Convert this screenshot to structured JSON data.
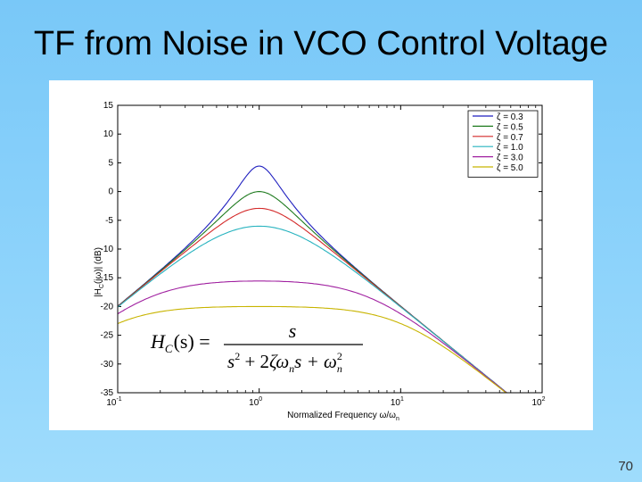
{
  "slide": {
    "title": "TF from Noise in VCO Control Voltage",
    "page_number": "70"
  },
  "formula": {
    "lhs": "H",
    "lhs_sub": "C",
    "lhs_arg": "(s) =",
    "numerator": "s",
    "den_s": "s",
    "den_s_sup": "2",
    "den_plus1": " + 2",
    "den_zeta": "ζω",
    "den_zeta_sub": "n",
    "den_s2": "s + ω",
    "den_w_sup": "2",
    "den_w_sub": "n"
  },
  "chart_data": {
    "type": "line",
    "title": "",
    "xlabel": "Normalized Frequency ω/ω",
    "xlabel_sub": "n",
    "ylabel": "|H",
    "ylabel_sub": "C",
    "ylabel_rest": "(jω)| (dB)",
    "xscale": "log",
    "xlim": [
      0.1,
      100
    ],
    "ylim": [
      -35,
      15
    ],
    "yticks": [
      "15",
      "10",
      "5",
      "0",
      "-5",
      "-10",
      "-15",
      "-20",
      "-25",
      "-30",
      "-35"
    ],
    "xticks": [
      {
        "base": "10",
        "exp": "-1"
      },
      {
        "base": "10",
        "exp": "0"
      },
      {
        "base": "10",
        "exp": "1"
      },
      {
        "base": "10",
        "exp": "2"
      }
    ],
    "legend_position": "top-right",
    "series": [
      {
        "name": "ζ = 0.3",
        "zeta": 0.3,
        "color": "#1f1fbf"
      },
      {
        "name": "ζ = 0.5",
        "zeta": 0.5,
        "color": "#1e7a1e"
      },
      {
        "name": "ζ = 0.7",
        "zeta": 0.7,
        "color": "#d42a2a"
      },
      {
        "name": "ζ = 1.0",
        "zeta": 1.0,
        "color": "#27b3bf"
      },
      {
        "name": "ζ = 3.0",
        "zeta": 3.0,
        "color": "#a020a0"
      },
      {
        "name": "ζ = 5.0",
        "zeta": 5.0,
        "color": "#c8b400"
      }
    ]
  }
}
